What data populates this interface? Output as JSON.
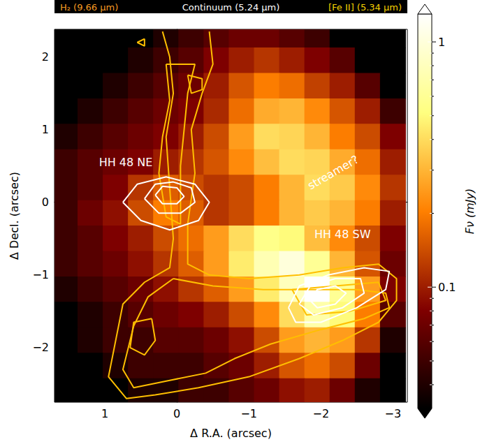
{
  "chart_data": {
    "type": "heatmap",
    "header": [
      {
        "text": "H₂ (9.66 μm)",
        "color": "#f59a22"
      },
      {
        "text": "Continuum (5.24 μm)",
        "color": "#ffffff"
      },
      {
        "text": "[Fe II] (5.34 μm)",
        "color": "#f5d000"
      }
    ],
    "name": "Continuum (5.24 μm)",
    "xlabel": "Δ R.A. (arcsec)",
    "ylabel": "Δ Decl. (arcsec)",
    "xlim": [
      1.7,
      -3.2
    ],
    "ylim": [
      -2.75,
      2.38
    ],
    "xticks": [
      1,
      0,
      {
        "value": -1,
        "label": "−1"
      },
      {
        "value": -2,
        "label": "−2"
      },
      {
        "value": -3,
        "label": "−3"
      }
    ],
    "yticks": [
      {
        "value": -2,
        "label": "−2"
      },
      {
        "value": -1,
        "label": "−1"
      },
      0,
      1,
      2
    ],
    "grid": false,
    "x": [
      1.55,
      1.2,
      0.85,
      0.5,
      0.15,
      -0.2,
      -0.55,
      -0.9,
      -1.25,
      -1.6,
      -1.95,
      -2.3,
      -2.65,
      -3.0
    ],
    "y": [
      2.3,
      1.95,
      1.6,
      1.25,
      0.9,
      0.55,
      0.2,
      -0.15,
      -0.5,
      -0.85,
      -1.2,
      -1.55,
      -1.9,
      -2.25,
      -2.6
    ],
    "values": [
      [
        0.02,
        0.02,
        0.02,
        0.03,
        0.04,
        0.05,
        0.06,
        0.07,
        0.07,
        0.06,
        0.05,
        0.03,
        0.02,
        0.02
      ],
      [
        0.02,
        0.02,
        0.03,
        0.04,
        0.05,
        0.06,
        0.08,
        0.1,
        0.12,
        0.1,
        0.08,
        0.06,
        0.03,
        0.02
      ],
      [
        0.02,
        0.03,
        0.04,
        0.05,
        0.06,
        0.07,
        0.1,
        0.15,
        0.2,
        0.18,
        0.13,
        0.1,
        0.06,
        0.03
      ],
      [
        0.03,
        0.04,
        0.05,
        0.06,
        0.07,
        0.08,
        0.11,
        0.18,
        0.28,
        0.3,
        0.22,
        0.15,
        0.1,
        0.05
      ],
      [
        0.04,
        0.05,
        0.06,
        0.07,
        0.08,
        0.1,
        0.14,
        0.25,
        0.4,
        0.38,
        0.3,
        0.2,
        0.14,
        0.08
      ],
      [
        0.05,
        0.06,
        0.07,
        0.08,
        0.1,
        0.12,
        0.15,
        0.22,
        0.32,
        0.4,
        0.38,
        0.28,
        0.18,
        0.1
      ],
      [
        0.05,
        0.06,
        0.08,
        0.12,
        0.16,
        0.14,
        0.12,
        0.14,
        0.2,
        0.3,
        0.4,
        0.35,
        0.22,
        0.12
      ],
      [
        0.05,
        0.07,
        0.09,
        0.14,
        0.2,
        0.16,
        0.12,
        0.14,
        0.2,
        0.3,
        0.35,
        0.3,
        0.2,
        0.1
      ],
      [
        0.05,
        0.06,
        0.08,
        0.1,
        0.14,
        0.18,
        0.25,
        0.4,
        0.55,
        0.5,
        0.32,
        0.22,
        0.14,
        0.08
      ],
      [
        0.05,
        0.06,
        0.07,
        0.09,
        0.12,
        0.16,
        0.25,
        0.45,
        0.75,
        1.0,
        0.6,
        0.3,
        0.15,
        0.07
      ],
      [
        0.04,
        0.05,
        0.06,
        0.07,
        0.09,
        0.12,
        0.16,
        0.25,
        0.45,
        0.8,
        1.3,
        0.6,
        0.25,
        0.08
      ],
      [
        0.03,
        0.04,
        0.05,
        0.06,
        0.07,
        0.08,
        0.1,
        0.14,
        0.22,
        0.4,
        0.7,
        0.5,
        0.2,
        0.06
      ],
      [
        0.03,
        0.04,
        0.05,
        0.05,
        0.06,
        0.06,
        0.07,
        0.09,
        0.14,
        0.25,
        0.3,
        0.25,
        0.12,
        0.04
      ],
      [
        0.02,
        0.03,
        0.04,
        0.05,
        0.05,
        0.05,
        0.06,
        0.07,
        0.1,
        0.15,
        0.18,
        0.14,
        0.07,
        0.03
      ],
      [
        0.02,
        0.02,
        0.03,
        0.04,
        0.04,
        0.05,
        0.05,
        0.06,
        0.07,
        0.09,
        0.1,
        0.07,
        0.04,
        0.02
      ]
    ],
    "colorbar": {
      "label": "Fν (mJy)",
      "lim": [
        0.032,
        1.3
      ],
      "ticks": [
        0.1,
        1
      ],
      "minor_ticks": [
        0.04,
        0.05,
        0.06,
        0.07,
        0.08,
        0.09,
        0.2,
        0.3,
        0.4,
        0.5,
        0.6,
        0.7,
        0.8,
        0.9
      ],
      "log": true
    },
    "series": [
      {
        "name": "H₂ (9.66 μm)",
        "type": "line",
        "color": "#ffbf00",
        "contours": [
          [
            [
              0.2,
              2.35
            ],
            [
              0.1,
              2.0
            ],
            [
              0.05,
              1.5
            ],
            [
              0.15,
              0.9
            ],
            [
              0.1,
              0.2
            ],
            [
              0.05,
              -0.5
            ],
            [
              0.1,
              -0.9
            ],
            [
              0.45,
              -1.1
            ],
            [
              0.75,
              -1.4
            ],
            [
              0.85,
              -1.9
            ],
            [
              0.95,
              -2.4
            ],
            [
              0.7,
              -2.7
            ],
            [
              0.3,
              -2.65
            ],
            [
              -0.3,
              -2.55
            ],
            [
              -1.0,
              -2.4
            ],
            [
              -1.7,
              -2.15
            ],
            [
              -2.3,
              -1.9
            ],
            [
              -2.8,
              -1.65
            ],
            [
              -3.05,
              -1.35
            ],
            [
              -3.05,
              -1.05
            ],
            [
              -2.8,
              -0.85
            ],
            [
              -2.3,
              -0.9
            ],
            [
              -1.7,
              -1.0
            ],
            [
              -1.0,
              -1.05
            ],
            [
              -0.45,
              -1.0
            ],
            [
              -0.15,
              -0.85
            ],
            [
              -0.15,
              -0.3
            ],
            [
              -0.25,
              0.4
            ],
            [
              -0.2,
              1.0
            ],
            [
              -0.35,
              1.5
            ],
            [
              -0.5,
              1.9
            ],
            [
              -0.45,
              2.35
            ]
          ],
          [
            [
              0.05,
              -1.05
            ],
            [
              -0.5,
              -1.15
            ],
            [
              -1.2,
              -1.2
            ],
            [
              -1.9,
              -1.2
            ],
            [
              -2.5,
              -1.2
            ],
            [
              -2.9,
              -1.25
            ],
            [
              -2.95,
              -1.45
            ],
            [
              -2.6,
              -1.6
            ],
            [
              -2.0,
              -1.75
            ],
            [
              -1.3,
              -1.95
            ],
            [
              -0.8,
              -2.15
            ],
            [
              -0.4,
              -2.35
            ],
            [
              0.1,
              -2.45
            ],
            [
              0.6,
              -2.55
            ],
            [
              0.75,
              -2.3
            ],
            [
              0.6,
              -1.7
            ],
            [
              0.4,
              -1.3
            ],
            [
              0.05,
              -1.05
            ]
          ],
          [
            [
              0.15,
              1.9
            ],
            [
              0.1,
              1.4
            ],
            [
              0.2,
              0.9
            ],
            [
              0.25,
              0.4
            ],
            [
              0.15,
              -0.2
            ],
            [
              -0.05,
              -0.3
            ],
            [
              -0.05,
              0.5
            ],
            [
              -0.1,
              1.0
            ],
            [
              -0.15,
              1.5
            ],
            [
              -0.25,
              1.9
            ],
            [
              0.15,
              1.9
            ]
          ],
          [
            [
              0.35,
              -1.6
            ],
            [
              0.6,
              -1.65
            ],
            [
              0.65,
              -2.0
            ],
            [
              0.45,
              -2.1
            ],
            [
              0.3,
              -1.9
            ],
            [
              0.35,
              -1.6
            ]
          ],
          [
            [
              -1.6,
              -1.2
            ],
            [
              -2.2,
              -1.15
            ],
            [
              -2.8,
              -1.1
            ],
            [
              -2.9,
              -1.35
            ],
            [
              -2.4,
              -1.5
            ],
            [
              -1.8,
              -1.55
            ],
            [
              -1.6,
              -1.2
            ]
          ],
          [
            [
              0.45,
              2.25
            ],
            [
              0.55,
              2.2
            ],
            [
              0.45,
              2.15
            ],
            [
              0.45,
              2.25
            ]
          ],
          [
            [
              -0.15,
              1.75
            ],
            [
              -0.35,
              1.7
            ],
            [
              -0.35,
              1.55
            ],
            [
              -0.2,
              1.5
            ],
            [
              -0.15,
              1.75
            ]
          ]
        ]
      },
      {
        "name": "[Fe II] (5.34 μm)",
        "type": "line",
        "color": "#ffffff",
        "contours": [
          [
            [
              0.75,
              0.0
            ],
            [
              0.55,
              0.25
            ],
            [
              0.15,
              0.35
            ],
            [
              -0.25,
              0.25
            ],
            [
              -0.45,
              0.0
            ],
            [
              -0.3,
              -0.25
            ],
            [
              0.1,
              -0.38
            ],
            [
              0.5,
              -0.25
            ],
            [
              0.75,
              0.0
            ]
          ],
          [
            [
              0.45,
              0.05
            ],
            [
              0.3,
              0.25
            ],
            [
              0.05,
              0.28
            ],
            [
              -0.2,
              0.2
            ],
            [
              -0.25,
              0.0
            ],
            [
              -0.05,
              -0.15
            ],
            [
              0.25,
              -0.15
            ],
            [
              0.45,
              0.05
            ]
          ],
          [
            [
              0.3,
              0.1
            ],
            [
              0.2,
              0.22
            ],
            [
              0.0,
              0.2
            ],
            [
              -0.1,
              0.08
            ],
            [
              0.0,
              -0.02
            ],
            [
              0.2,
              -0.02
            ],
            [
              0.3,
              0.1
            ]
          ],
          [
            [
              -1.55,
              -1.45
            ],
            [
              -1.7,
              -1.15
            ],
            [
              -2.1,
              -1.0
            ],
            [
              -2.6,
              -0.9
            ],
            [
              -2.95,
              -0.95
            ],
            [
              -2.9,
              -1.2
            ],
            [
              -2.5,
              -1.45
            ],
            [
              -2.0,
              -1.65
            ],
            [
              -1.65,
              -1.65
            ],
            [
              -1.55,
              -1.45
            ]
          ],
          [
            [
              -1.7,
              -1.4
            ],
            [
              -1.85,
              -1.15
            ],
            [
              -2.2,
              -1.05
            ],
            [
              -2.55,
              -1.05
            ],
            [
              -2.6,
              -1.25
            ],
            [
              -2.3,
              -1.45
            ],
            [
              -1.9,
              -1.55
            ],
            [
              -1.7,
              -1.4
            ]
          ],
          [
            [
              -1.85,
              -1.35
            ],
            [
              -1.95,
              -1.2
            ],
            [
              -2.2,
              -1.15
            ],
            [
              -2.35,
              -1.25
            ],
            [
              -2.2,
              -1.4
            ],
            [
              -1.95,
              -1.45
            ],
            [
              -1.85,
              -1.35
            ]
          ]
        ]
      }
    ],
    "annotations": [
      {
        "text": "HH 48 NE",
        "x": 0.71,
        "y": 0.55
      },
      {
        "text": "HH 48 SW",
        "x": -2.3,
        "y": -0.44
      },
      {
        "text": "streamer?",
        "x": -2.17,
        "y": 0.41
      }
    ]
  }
}
